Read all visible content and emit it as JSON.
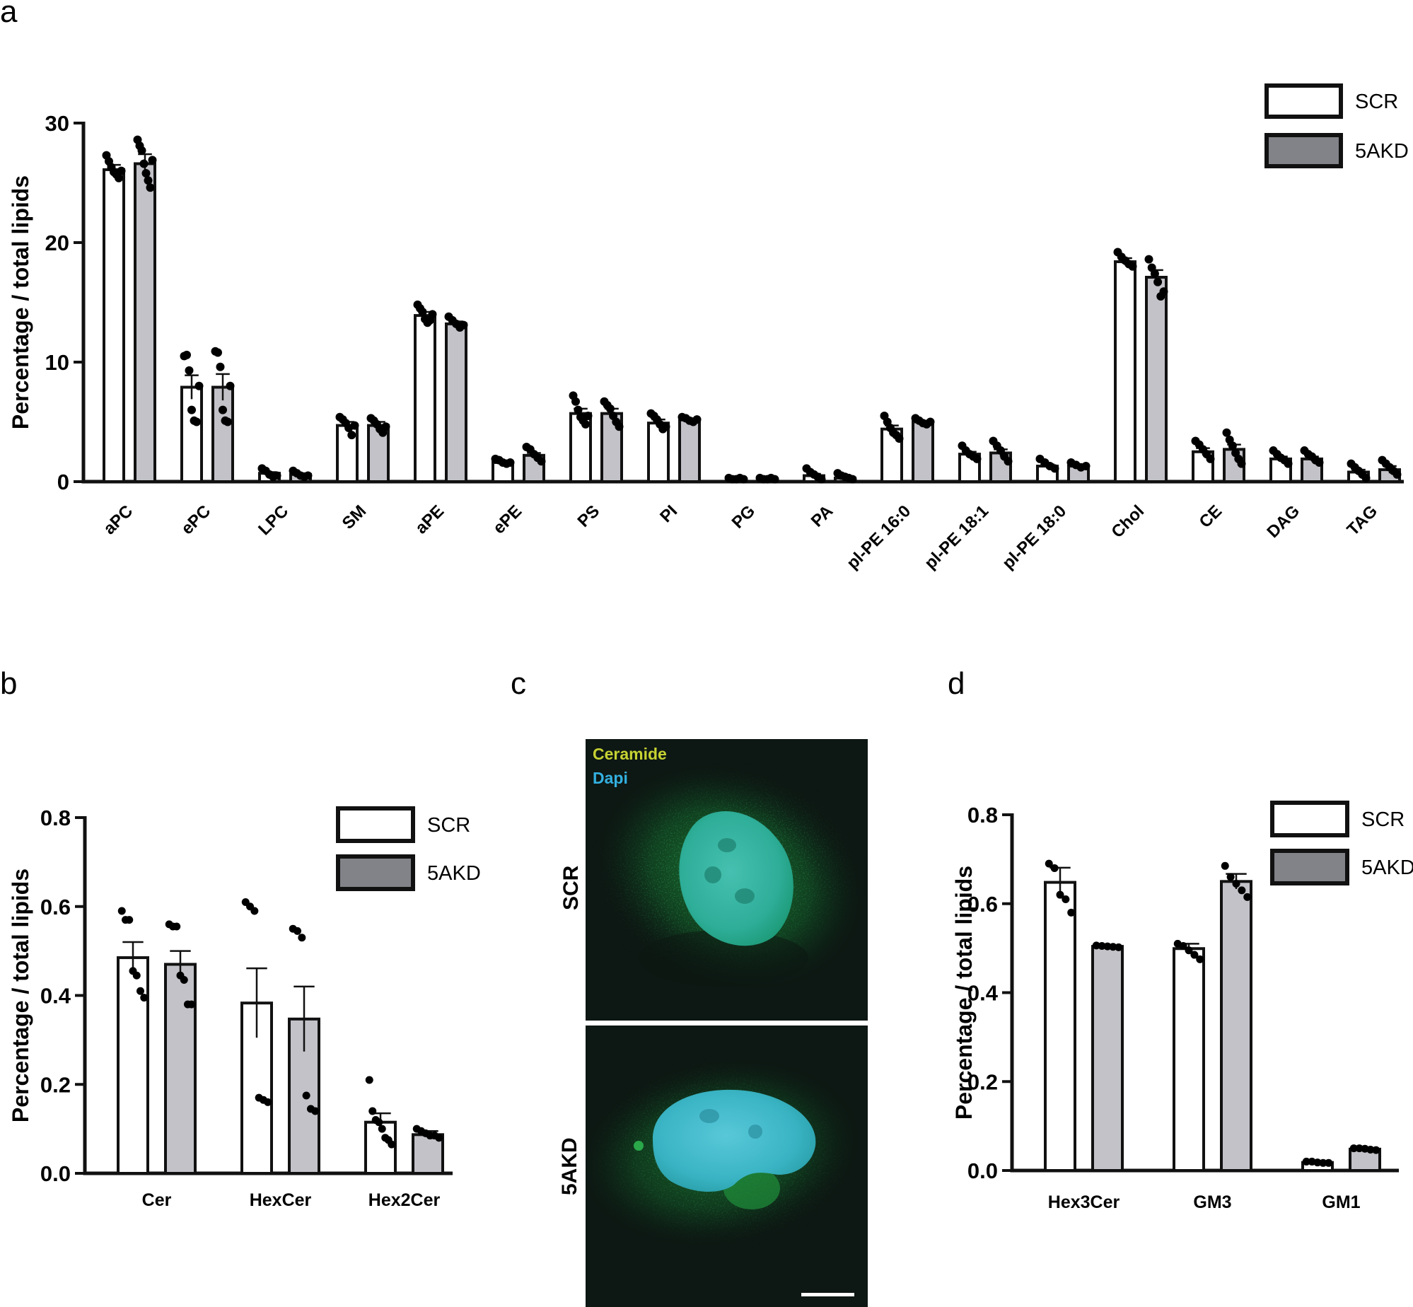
{
  "panels": {
    "a": "a",
    "b": "b",
    "c": "c",
    "d": "d"
  },
  "colors": {
    "scr": "#ffffff",
    "akd": "#c2c2c8",
    "legend_akd": "#818388",
    "stroke": "#111111",
    "ceramide": "#c6d232",
    "dapi": "#33b0e0"
  },
  "chart_data": [
    {
      "id": "a",
      "type": "bar",
      "ylabel": "Percentage / total lipids",
      "ylim": [
        0,
        30
      ],
      "yticks": [
        0,
        10,
        20,
        30
      ],
      "legend": {
        "placement": "top-right",
        "entries": [
          "SCR",
          "5AKD"
        ]
      },
      "categories": [
        "aPC",
        "ePC",
        "LPC",
        "SM",
        "aPE",
        "ePE",
        "PS",
        "PI",
        "PG",
        "PA",
        "pl-PE 16:0",
        "pl-PE 18:1",
        "pl-PE 18:0",
        "Chol",
        "CE",
        "DAG",
        "TAG"
      ],
      "series": [
        {
          "name": "SCR",
          "values": [
            26.1,
            7.9,
            0.7,
            4.7,
            13.9,
            1.6,
            5.7,
            4.9,
            0.2,
            0.5,
            4.4,
            2.3,
            1.3,
            18.4,
            2.5,
            1.9,
            0.8
          ],
          "errors": [
            0.4,
            1.0,
            0.1,
            0.3,
            0.3,
            0.1,
            0.4,
            0.3,
            0.05,
            0.15,
            0.3,
            0.2,
            0.15,
            0.3,
            0.3,
            0.2,
            0.2
          ],
          "points": [
            [
              27.3,
              26.8,
              26.3,
              25.9,
              25.7,
              25.4,
              26.0
            ],
            [
              10.5,
              10.6,
              9.3,
              6.0,
              5.1,
              5.0,
              8.0
            ],
            [
              1.1,
              0.9,
              0.6,
              0.4,
              0.5
            ],
            [
              5.4,
              5.2,
              4.9,
              4.5,
              3.9,
              4.7
            ],
            [
              14.8,
              14.5,
              14.2,
              13.6,
              13.3,
              13.5,
              14.0
            ],
            [
              1.9,
              1.8,
              1.6,
              1.5,
              1.6
            ],
            [
              7.2,
              6.7,
              6.0,
              5.4,
              5.1,
              4.8,
              5.5
            ],
            [
              5.7,
              5.5,
              5.2,
              4.8,
              4.4,
              4.6
            ],
            [
              0.3,
              0.2,
              0.2,
              0.3,
              0.2
            ],
            [
              1.1,
              0.8,
              0.6,
              0.4,
              0.2
            ],
            [
              5.5,
              5.0,
              4.5,
              4.1,
              3.9,
              3.6
            ],
            [
              3.0,
              2.6,
              2.3,
              2.1,
              1.9
            ],
            [
              1.9,
              1.6,
              1.3,
              1.1
            ],
            [
              19.2,
              18.8,
              18.5,
              18.2,
              18.0
            ],
            [
              3.4,
              3.1,
              2.7,
              2.3,
              1.9
            ],
            [
              2.6,
              2.3,
              2.0,
              1.8,
              1.5
            ],
            [
              1.5,
              1.2,
              0.9,
              0.6,
              0.3
            ]
          ]
        },
        {
          "name": "5AKD",
          "values": [
            26.6,
            7.9,
            0.6,
            4.7,
            13.2,
            2.2,
            5.7,
            5.2,
            0.2,
            0.3,
            5.0,
            2.4,
            1.3,
            17.1,
            2.7,
            1.9,
            1.0
          ],
          "errors": [
            0.8,
            1.1,
            0.1,
            0.3,
            0.2,
            0.2,
            0.4,
            0.1,
            0.05,
            0.1,
            0.1,
            0.3,
            0.1,
            0.6,
            0.4,
            0.2,
            0.3
          ],
          "points": [
            [
              28.6,
              28.1,
              27.7,
              26.6,
              25.8,
              25.2,
              24.6,
              26.9
            ],
            [
              10.9,
              10.8,
              9.6,
              6.0,
              5.1,
              5.0,
              8.0
            ],
            [
              0.9,
              0.7,
              0.5,
              0.4,
              0.5
            ],
            [
              5.3,
              5.1,
              4.8,
              4.4,
              4.1,
              4.6
            ],
            [
              13.8,
              13.5,
              13.2,
              12.9,
              13.1
            ],
            [
              2.9,
              2.7,
              2.3,
              2.0,
              1.7
            ],
            [
              6.7,
              6.4,
              6.1,
              5.5,
              5.0,
              4.6
            ],
            [
              5.4,
              5.3,
              5.1,
              5.0,
              5.2
            ],
            [
              0.3,
              0.2,
              0.2,
              0.3,
              0.2
            ],
            [
              0.7,
              0.5,
              0.4,
              0.3,
              0.2
            ],
            [
              5.3,
              5.1,
              4.9,
              4.8,
              5.0
            ],
            [
              3.4,
              3.0,
              2.6,
              2.1,
              1.7
            ],
            [
              1.6,
              1.4,
              1.2,
              1.3
            ],
            [
              18.6,
              17.9,
              17.4,
              16.7,
              15.5,
              15.9
            ],
            [
              4.1,
              3.5,
              3.0,
              2.4,
              1.9,
              1.5
            ],
            [
              2.6,
              2.3,
              2.1,
              1.8,
              1.6
            ],
            [
              1.8,
              1.5,
              1.2,
              0.9,
              0.6
            ]
          ]
        }
      ]
    },
    {
      "id": "b",
      "type": "bar",
      "ylabel": "Percentage / total lipids",
      "ylim": [
        0,
        0.8
      ],
      "yticks": [
        0.0,
        0.2,
        0.4,
        0.6,
        0.8
      ],
      "ytick_labels": [
        "0.0",
        "0.2",
        "0.4",
        "0.6",
        "0.8"
      ],
      "legend": {
        "placement": "top-right",
        "entries": [
          "SCR",
          "5AKD"
        ]
      },
      "categories": [
        "Cer",
        "HexCer",
        "Hex2Cer"
      ],
      "series": [
        {
          "name": "SCR",
          "values": [
            0.485,
            0.383,
            0.115
          ],
          "errors": [
            0.035,
            0.078,
            0.02
          ],
          "points": [
            [
              0.59,
              0.57,
              0.57,
              0.455,
              0.445,
              0.41,
              0.395
            ],
            [
              0.61,
              0.6,
              0.59,
              0.17,
              0.165,
              0.16
            ],
            [
              0.21,
              0.14,
              0.12,
              0.115,
              0.1,
              0.08,
              0.075,
              0.065
            ]
          ]
        },
        {
          "name": "5AKD",
          "values": [
            0.47,
            0.347,
            0.087
          ],
          "errors": [
            0.03,
            0.073,
            0.008
          ],
          "points": [
            [
              0.56,
              0.555,
              0.555,
              0.445,
              0.435,
              0.38,
              0.38
            ],
            [
              0.55,
              0.545,
              0.53,
              0.175,
              0.145,
              0.14
            ],
            [
              0.1,
              0.095,
              0.09,
              0.085,
              0.085,
              0.08
            ]
          ]
        }
      ]
    },
    {
      "id": "d",
      "type": "bar",
      "ylabel": "Percentage / total lipids",
      "ylim": [
        0,
        0.8
      ],
      "yticks": [
        0.0,
        0.2,
        0.4,
        0.6,
        0.8
      ],
      "ytick_labels": [
        "0.0",
        "0.2",
        "0.4",
        "0.6",
        "0.8"
      ],
      "legend": {
        "placement": "top-right",
        "entries": [
          "SCR",
          "5AKD"
        ]
      },
      "categories": [
        "Hex3Cer",
        "GM3",
        "GM1"
      ],
      "series": [
        {
          "name": "SCR",
          "values": [
            0.648,
            0.499,
            0.018
          ],
          "errors": [
            0.033,
            0.011,
            0.002
          ],
          "points": [
            [
              0.69,
              0.68,
              0.62,
              0.61,
              0.58
            ],
            [
              0.51,
              0.505,
              0.495,
              0.485,
              0.475
            ],
            [
              0.02,
              0.02,
              0.018,
              0.017,
              0.017
            ]
          ]
        },
        {
          "name": "5AKD",
          "values": [
            0.504,
            0.65,
            0.048
          ],
          "errors": [
            0.002,
            0.017,
            0.002
          ],
          "points": [
            [
              0.506,
              0.505,
              0.504,
              0.503,
              0.502
            ],
            [
              0.685,
              0.66,
              0.645,
              0.63,
              0.615
            ],
            [
              0.05,
              0.05,
              0.049,
              0.047,
              0.046
            ]
          ]
        }
      ]
    }
  ],
  "micrograph": {
    "stain_labels": {
      "ceramide": "Ceramide",
      "dapi": "Dapi"
    },
    "rows": [
      "SCR",
      "5AKD"
    ]
  }
}
